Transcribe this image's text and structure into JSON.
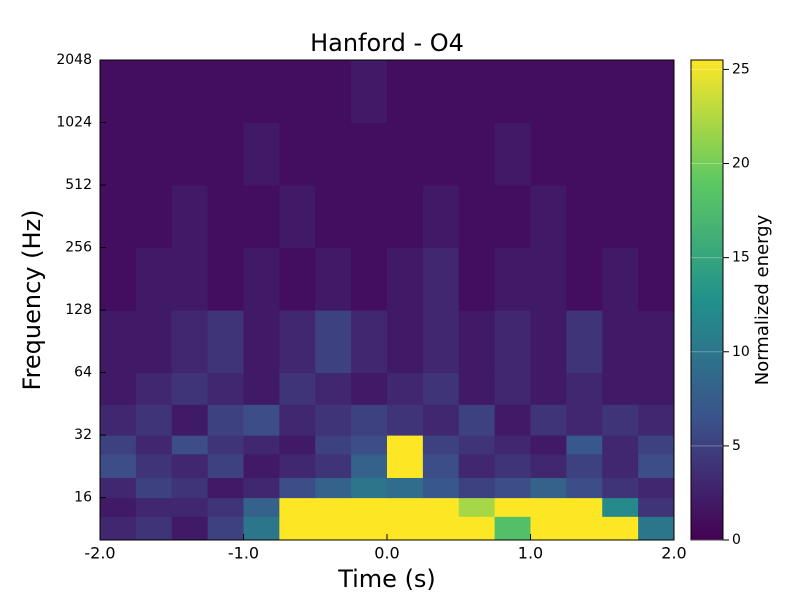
{
  "chart_data": {
    "type": "heatmap",
    "title": "Hanford - O4",
    "xlabel": "Time (s)",
    "ylabel": "Frequency (Hz)",
    "colorbar_label": "Normalized energy",
    "xlim": [
      -2,
      2
    ],
    "xticks": [
      {
        "value": -2,
        "label": "-2.0"
      },
      {
        "value": -1,
        "label": "-1.0"
      },
      {
        "value": 0,
        "label": "0.0"
      },
      {
        "value": 1,
        "label": "1.0"
      },
      {
        "value": 2,
        "label": "2.0"
      }
    ],
    "ylim": [
      10,
      2048
    ],
    "yscale": "log2",
    "yticks": [
      16,
      32,
      64,
      128,
      256,
      512,
      1024,
      2048
    ],
    "clim": [
      0,
      25.5
    ],
    "cticks": [
      0,
      5,
      10,
      15,
      20,
      25
    ],
    "colormap": "viridis",
    "x_edges": [
      -2,
      -1.75,
      -1.5,
      -1.25,
      -1,
      -0.75,
      -0.5,
      -0.25,
      0,
      0.25,
      0.5,
      0.75,
      1,
      1.25,
      1.5,
      1.75,
      2
    ],
    "y_edges": [
      10,
      13,
      16,
      20,
      26,
      32,
      45,
      64,
      128,
      256,
      512,
      1024,
      2048
    ],
    "z": [
      [
        3,
        4,
        2,
        5,
        10,
        26,
        26,
        26,
        26,
        26,
        26,
        18,
        26,
        26,
        26,
        10
      ],
      [
        2,
        3,
        3,
        4,
        8,
        26,
        26,
        26,
        26,
        26,
        22,
        26,
        26,
        26,
        12,
        4
      ],
      [
        3,
        5,
        4,
        2,
        3,
        6,
        8,
        10,
        9,
        7,
        5,
        6,
        8,
        6,
        4,
        3
      ],
      [
        6,
        4,
        3,
        5,
        2,
        3,
        4,
        8,
        26,
        6,
        3,
        4,
        3,
        5,
        3,
        6
      ],
      [
        5,
        3,
        6,
        4,
        3,
        2,
        5,
        6,
        26,
        5,
        4,
        3,
        2,
        7,
        3,
        5
      ],
      [
        3,
        4,
        2,
        5,
        6,
        3,
        4,
        5,
        4,
        3,
        5,
        2,
        4,
        3,
        4,
        3
      ],
      [
        2,
        3,
        4,
        3,
        2,
        4,
        3,
        2,
        3,
        4,
        2,
        3,
        2,
        3,
        2,
        2
      ],
      [
        2,
        2,
        3,
        4,
        2,
        3,
        5,
        3,
        2,
        3,
        2,
        3,
        2,
        4,
        2,
        2
      ],
      [
        1,
        2,
        2,
        1,
        2,
        1,
        2,
        1,
        2,
        3,
        1,
        2,
        2,
        1,
        2,
        1
      ],
      [
        1,
        1,
        2,
        1,
        1,
        2,
        1,
        1,
        1,
        2,
        1,
        1,
        2,
        1,
        1,
        1
      ],
      [
        1,
        1,
        1,
        1,
        2,
        1,
        1,
        1,
        1,
        1,
        1,
        2,
        1,
        1,
        1,
        1
      ],
      [
        1,
        1,
        1,
        1,
        1,
        1,
        1,
        2,
        1,
        1,
        1,
        1,
        1,
        1,
        1,
        1
      ]
    ]
  }
}
